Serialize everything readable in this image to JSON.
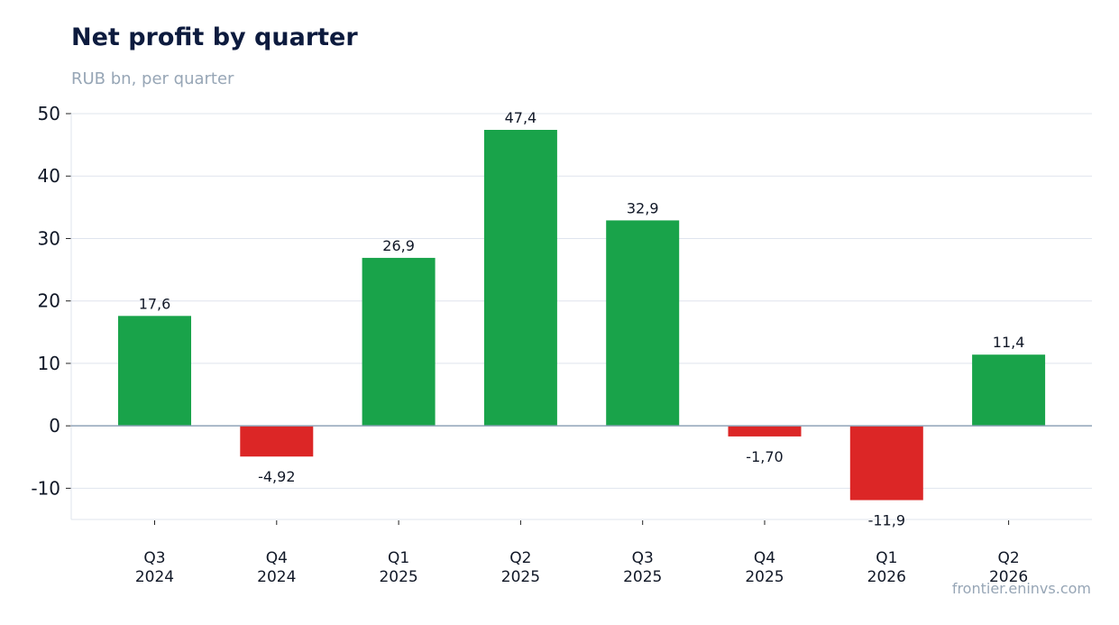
{
  "title": "Net profit by quarter",
  "subtitle": "RUB bn, per quarter",
  "source": "frontier.eninvs.com",
  "colors": {
    "positive": "#19a34a",
    "negative": "#dc2626",
    "grid": "#dfe4ee",
    "zero_line": "#8fa3b8",
    "axis": "#dfe4ee"
  },
  "chart_data": {
    "type": "bar",
    "title": "Net profit by quarter",
    "subtitle": "RUB bn, per quarter",
    "xlabel": "",
    "ylabel": "",
    "categories": [
      [
        "Q3",
        "2024"
      ],
      [
        "Q4",
        "2024"
      ],
      [
        "Q1",
        "2025"
      ],
      [
        "Q2",
        "2025"
      ],
      [
        "Q3",
        "2025"
      ],
      [
        "Q4",
        "2025"
      ],
      [
        "Q1",
        "2026"
      ],
      [
        "Q2",
        "2026"
      ]
    ],
    "values": [
      17.6,
      -4.92,
      26.9,
      47.4,
      32.9,
      -1.7,
      -11.9,
      11.4
    ],
    "value_labels": [
      "17,6",
      "-4,92",
      "26,9",
      "47,4",
      "32,9",
      "-1,70",
      "-11,9",
      "11,4"
    ],
    "ylim": [
      -15,
      50
    ],
    "yticks": [
      -10,
      0,
      10,
      20,
      30,
      40,
      50
    ],
    "grid": true,
    "legend": "none"
  }
}
